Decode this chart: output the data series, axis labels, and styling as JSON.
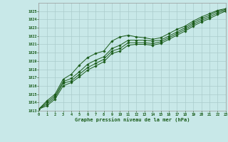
{
  "background_color": "#c8e8e8",
  "grid_color": "#aacccc",
  "line_color": "#1a5c1a",
  "title": "Graphe pression niveau de la mer (hPa)",
  "xlim": [
    0,
    23
  ],
  "ylim": [
    1013,
    1026
  ],
  "xticks": [
    0,
    1,
    2,
    3,
    4,
    5,
    6,
    7,
    8,
    9,
    10,
    11,
    12,
    13,
    14,
    15,
    16,
    17,
    18,
    19,
    20,
    21,
    22,
    23
  ],
  "yticks": [
    1013,
    1014,
    1015,
    1016,
    1017,
    1018,
    1019,
    1020,
    1021,
    1022,
    1023,
    1024,
    1025
  ],
  "series1": [
    1013.2,
    1014.2,
    1015.0,
    1016.8,
    1017.4,
    1018.5,
    1019.4,
    1019.9,
    1020.2,
    1021.4,
    1021.9,
    1022.1,
    1021.9,
    1021.8,
    1021.6,
    1021.8,
    1022.3,
    1022.8,
    1023.2,
    1023.8,
    1024.3,
    1024.7,
    1025.1,
    1025.3
  ],
  "series2": [
    1013.2,
    1014.0,
    1014.8,
    1016.5,
    1016.9,
    1017.7,
    1018.6,
    1019.1,
    1019.5,
    1020.5,
    1020.9,
    1021.5,
    1021.5,
    1021.5,
    1021.4,
    1021.5,
    1022.0,
    1022.5,
    1023.0,
    1023.6,
    1024.1,
    1024.5,
    1025.0,
    1025.2
  ],
  "series3": [
    1013.2,
    1013.8,
    1014.6,
    1016.3,
    1016.6,
    1017.4,
    1018.2,
    1018.7,
    1019.2,
    1020.2,
    1020.5,
    1021.2,
    1021.2,
    1021.2,
    1021.1,
    1021.3,
    1021.8,
    1022.3,
    1022.8,
    1023.4,
    1023.9,
    1024.3,
    1024.8,
    1025.1
  ],
  "series4": [
    1013.2,
    1013.6,
    1014.4,
    1016.0,
    1016.4,
    1017.1,
    1017.9,
    1018.4,
    1018.9,
    1019.9,
    1020.2,
    1020.9,
    1021.0,
    1021.0,
    1020.9,
    1021.1,
    1021.6,
    1022.1,
    1022.6,
    1023.2,
    1023.7,
    1024.1,
    1024.6,
    1025.0
  ]
}
